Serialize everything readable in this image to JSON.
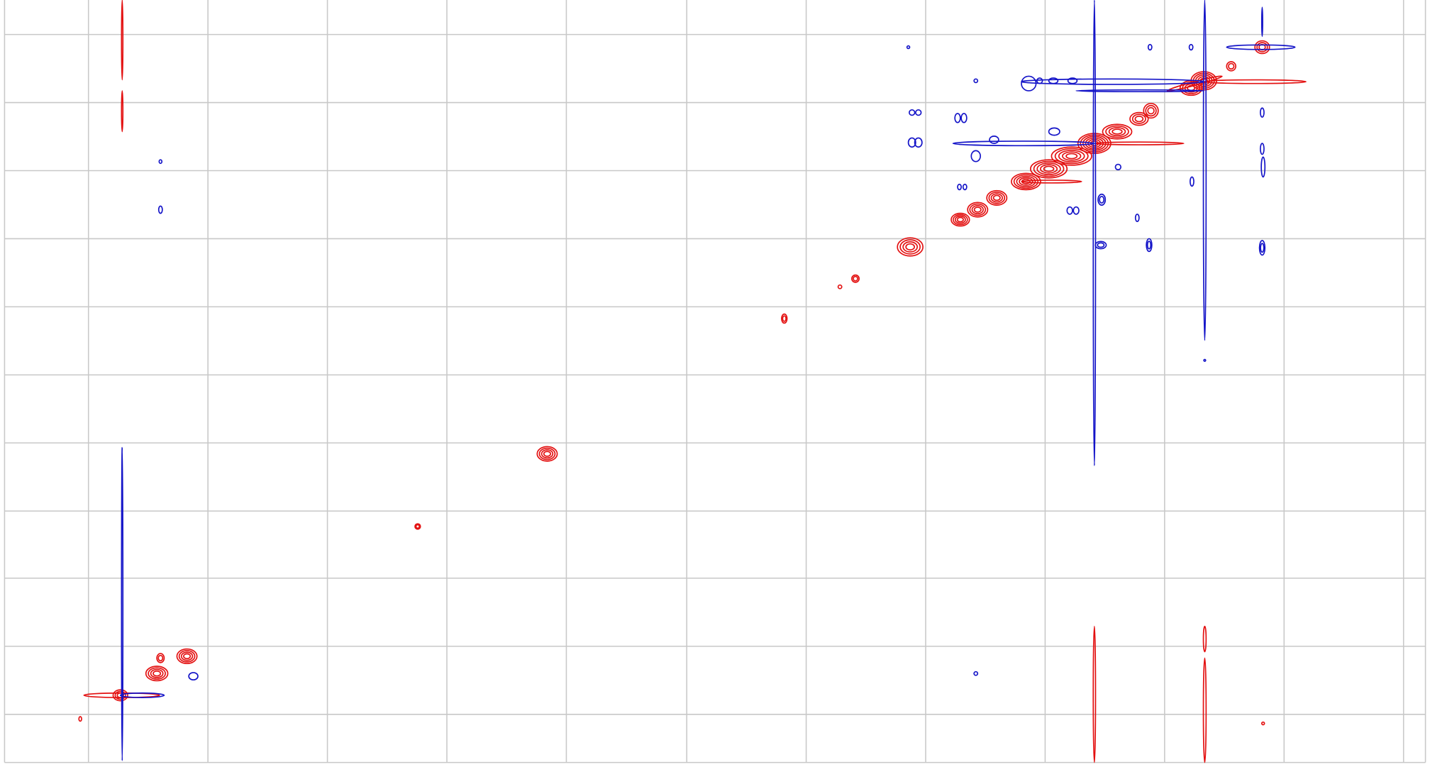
{
  "chart_data": {
    "type": "contour",
    "grid": true,
    "positive_color": "#e31010",
    "negative_color": "#1414c8"
  }
}
